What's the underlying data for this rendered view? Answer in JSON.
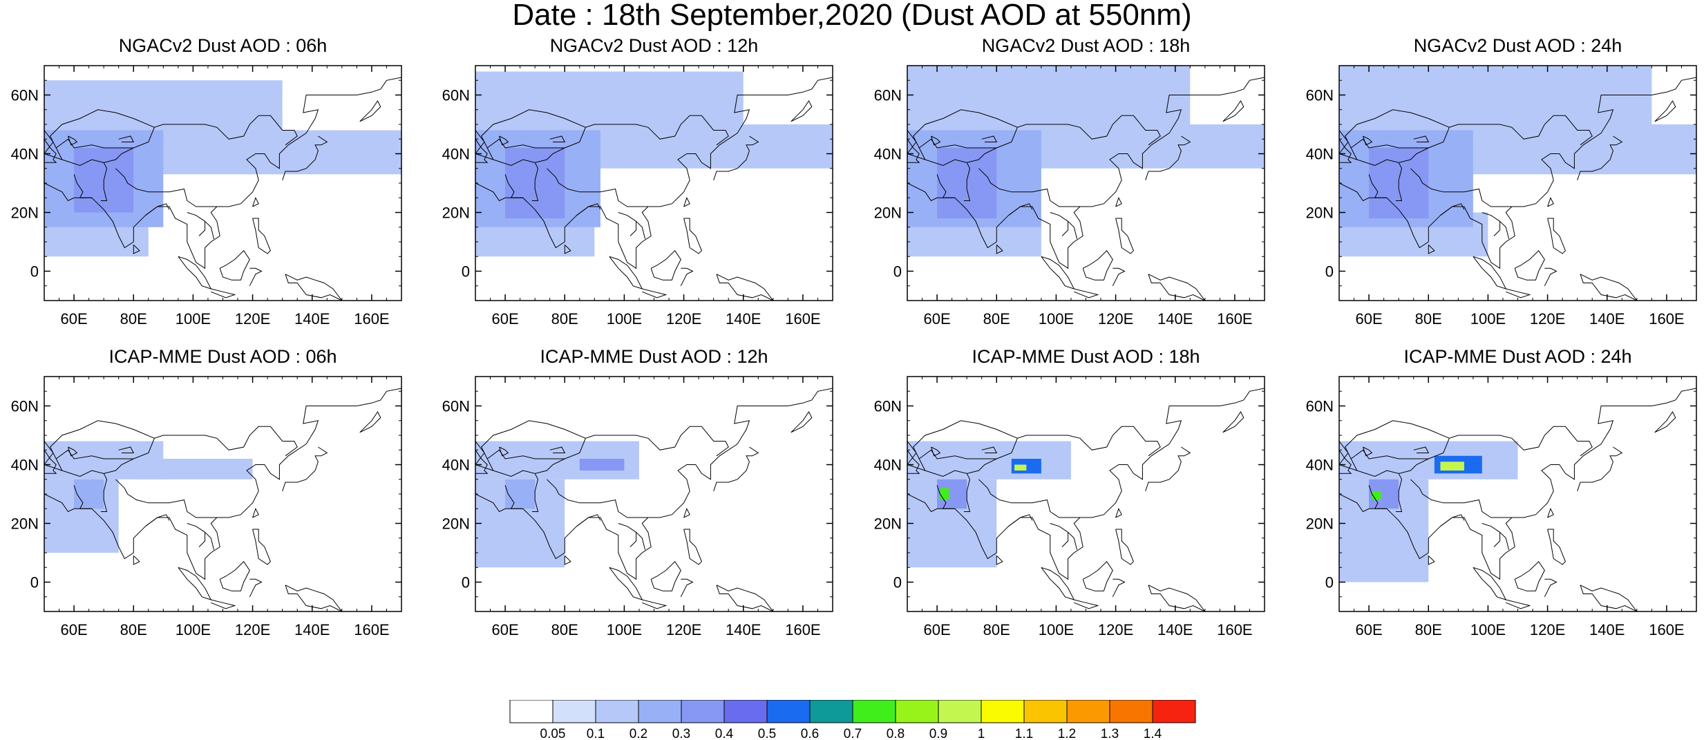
{
  "title": "Date : 18th September,2020 (Dust AOD at 550nm)",
  "map": {
    "lon_range": [
      50,
      170
    ],
    "lat_range": [
      -10,
      70
    ],
    "xticks": [
      60,
      80,
      100,
      120,
      140,
      160
    ],
    "xtick_labels": [
      "60E",
      "80E",
      "100E",
      "120E",
      "140E",
      "160E"
    ],
    "yticks": [
      0,
      20,
      40,
      60
    ],
    "ytick_labels": [
      "0",
      "20N",
      "40N",
      "60N"
    ],
    "coastline_color": "#000000",
    "grid": false
  },
  "panels": [
    {
      "title": "NGACv2 Dust AOD : 06h"
    },
    {
      "title": "NGACv2 Dust AOD : 12h"
    },
    {
      "title": "NGACv2 Dust AOD : 18h"
    },
    {
      "title": "NGACv2 Dust AOD : 24h"
    },
    {
      "title": "ICAP-MME Dust AOD : 06h"
    },
    {
      "title": "ICAP-MME Dust AOD : 12h"
    },
    {
      "title": "ICAP-MME Dust AOD : 18h"
    },
    {
      "title": "ICAP-MME Dust AOD : 24h"
    }
  ],
  "colorbar": {
    "labels": [
      "0.05",
      "0.1",
      "0.2",
      "0.3",
      "0.4",
      "0.5",
      "0.6",
      "0.7",
      "0.8",
      "0.9",
      "1",
      "1.1",
      "1.2",
      "1.3",
      "1.4"
    ],
    "colors": [
      "#ffffff",
      "#d3e0fb",
      "#b6c8f8",
      "#98b0f5",
      "#8698f3",
      "#6a6cf0",
      "#1b6bf0",
      "#0f9a9a",
      "#40ee1c",
      "#98f31a",
      "#c3f750",
      "#fbfb00",
      "#fbc400",
      "#fb9a00",
      "#f87600",
      "#f62310"
    ]
  },
  "chart_data": {
    "type": "heatmap",
    "title": "Date : 18th September,2020 (Dust AOD at 550nm)",
    "variable": "Dust AOD at 550nm",
    "date": "18th September,2020",
    "levels": [
      0.05,
      0.1,
      0.2,
      0.3,
      0.4,
      0.5,
      0.6,
      0.7,
      0.8,
      0.9,
      1,
      1.1,
      1.2,
      1.3,
      1.4
    ],
    "xlim": [
      50,
      170
    ],
    "ylim": [
      -10,
      70
    ],
    "panels": [
      {
        "model": "NGACv2",
        "time": "06h",
        "dust_regions": [
          {
            "lon": [
              50,
              90
            ],
            "lat": [
              15,
              48
            ],
            "aod": 0.2
          },
          {
            "lon": [
              60,
              80
            ],
            "lat": [
              20,
              42
            ],
            "aod": 0.3
          },
          {
            "lon": [
              50,
              170
            ],
            "lat": [
              33,
              48
            ],
            "aod": 0.1
          },
          {
            "lon": [
              50,
              130
            ],
            "lat": [
              45,
              65
            ],
            "aod": 0.1
          },
          {
            "lon": [
              50,
              85
            ],
            "lat": [
              5,
              20
            ],
            "aod": 0.1
          }
        ]
      },
      {
        "model": "NGACv2",
        "time": "12h",
        "dust_regions": [
          {
            "lon": [
              50,
              92
            ],
            "lat": [
              15,
              48
            ],
            "aod": 0.2
          },
          {
            "lon": [
              60,
              80
            ],
            "lat": [
              18,
              42
            ],
            "aod": 0.3
          },
          {
            "lon": [
              50,
              170
            ],
            "lat": [
              35,
              50
            ],
            "aod": 0.1
          },
          {
            "lon": [
              50,
              140
            ],
            "lat": [
              45,
              68
            ],
            "aod": 0.1
          },
          {
            "lon": [
              50,
              90
            ],
            "lat": [
              5,
              20
            ],
            "aod": 0.1
          }
        ]
      },
      {
        "model": "NGACv2",
        "time": "18h",
        "dust_regions": [
          {
            "lon": [
              50,
              95
            ],
            "lat": [
              15,
              48
            ],
            "aod": 0.2
          },
          {
            "lon": [
              60,
              80
            ],
            "lat": [
              18,
              42
            ],
            "aod": 0.3
          },
          {
            "lon": [
              50,
              170
            ],
            "lat": [
              35,
              50
            ],
            "aod": 0.1
          },
          {
            "lon": [
              50,
              145
            ],
            "lat": [
              45,
              70
            ],
            "aod": 0.1
          },
          {
            "lon": [
              50,
              95
            ],
            "lat": [
              5,
              20
            ],
            "aod": 0.1
          }
        ]
      },
      {
        "model": "NGACv2",
        "time": "24h",
        "dust_regions": [
          {
            "lon": [
              50,
              95
            ],
            "lat": [
              15,
              48
            ],
            "aod": 0.2
          },
          {
            "lon": [
              60,
              80
            ],
            "lat": [
              18,
              42
            ],
            "aod": 0.3
          },
          {
            "lon": [
              50,
              170
            ],
            "lat": [
              33,
              50
            ],
            "aod": 0.1
          },
          {
            "lon": [
              50,
              155
            ],
            "lat": [
              45,
              70
            ],
            "aod": 0.1
          },
          {
            "lon": [
              50,
              100
            ],
            "lat": [
              5,
              20
            ],
            "aod": 0.1
          }
        ]
      },
      {
        "model": "ICAP-MME",
        "time": "06h",
        "dust_regions": [
          {
            "lon": [
              50,
              90
            ],
            "lat": [
              35,
              48
            ],
            "aod": 0.1
          },
          {
            "lon": [
              50,
              75
            ],
            "lat": [
              10,
              35
            ],
            "aod": 0.1
          },
          {
            "lon": [
              60,
              70
            ],
            "lat": [
              25,
              35
            ],
            "aod": 0.2
          },
          {
            "lon": [
              80,
              120
            ],
            "lat": [
              35,
              42
            ],
            "aod": 0.1
          }
        ]
      },
      {
        "model": "ICAP-MME",
        "time": "12h",
        "dust_regions": [
          {
            "lon": [
              50,
              105
            ],
            "lat": [
              35,
              48
            ],
            "aod": 0.1
          },
          {
            "lon": [
              50,
              80
            ],
            "lat": [
              5,
              35
            ],
            "aod": 0.1
          },
          {
            "lon": [
              60,
              70
            ],
            "lat": [
              25,
              35
            ],
            "aod": 0.2
          },
          {
            "lon": [
              85,
              100
            ],
            "lat": [
              38,
              42
            ],
            "aod": 0.3
          }
        ]
      },
      {
        "model": "ICAP-MME",
        "time": "18h",
        "dust_regions": [
          {
            "lon": [
              50,
              105
            ],
            "lat": [
              35,
              48
            ],
            "aod": 0.1
          },
          {
            "lon": [
              50,
              80
            ],
            "lat": [
              5,
              35
            ],
            "aod": 0.1
          },
          {
            "lon": [
              60,
              70
            ],
            "lat": [
              25,
              35
            ],
            "aod": 0.3
          },
          {
            "lon": [
              85,
              95
            ],
            "lat": [
              37,
              42
            ],
            "aod": 0.5
          },
          {
            "lon": [
              61,
              64
            ],
            "lat": [
              28,
              32
            ],
            "aod": 0.7
          },
          {
            "lon": [
              86,
              90
            ],
            "lat": [
              38,
              40
            ],
            "aod": 0.9
          }
        ]
      },
      {
        "model": "ICAP-MME",
        "time": "24h",
        "dust_regions": [
          {
            "lon": [
              50,
              110
            ],
            "lat": [
              35,
              48
            ],
            "aod": 0.1
          },
          {
            "lon": [
              50,
              80
            ],
            "lat": [
              0,
              35
            ],
            "aod": 0.1
          },
          {
            "lon": [
              60,
              70
            ],
            "lat": [
              25,
              35
            ],
            "aod": 0.3
          },
          {
            "lon": [
              82,
              98
            ],
            "lat": [
              37,
              43
            ],
            "aod": 0.5
          },
          {
            "lon": [
              61,
              64
            ],
            "lat": [
              28,
              31
            ],
            "aod": 0.7
          },
          {
            "lon": [
              84,
              92
            ],
            "lat": [
              38,
              41
            ],
            "aod": 0.9
          }
        ]
      }
    ]
  }
}
